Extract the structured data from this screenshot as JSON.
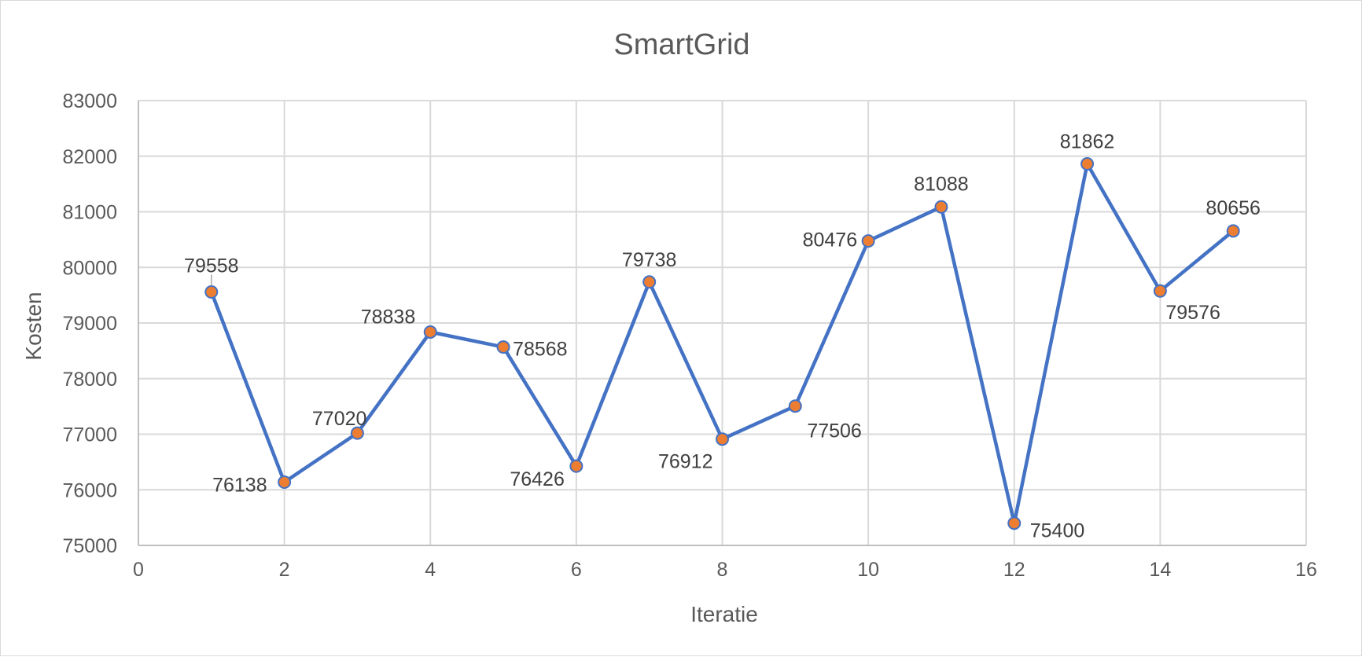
{
  "chart_data": {
    "type": "line",
    "title": "SmartGrid",
    "xlabel": "Iteratie",
    "ylabel": "Kosten",
    "xlim": [
      0,
      16
    ],
    "ylim": [
      75000,
      83000
    ],
    "x_ticks": [
      0,
      2,
      4,
      6,
      8,
      10,
      12,
      14,
      16
    ],
    "y_ticks": [
      75000,
      76000,
      77000,
      78000,
      79000,
      80000,
      81000,
      82000,
      83000
    ],
    "grid": true,
    "legend": "none",
    "colors": {
      "line": "#4472c4",
      "marker": "#ed7d31",
      "marker_edge": "#4472c4"
    },
    "series": [
      {
        "x": [
          1,
          2,
          3,
          4,
          5,
          6,
          7,
          8,
          9,
          10,
          11,
          12,
          13,
          14,
          15
        ],
        "values": [
          79558,
          76138,
          77020,
          78838,
          78568,
          76426,
          79738,
          76912,
          77506,
          80476,
          81088,
          75400,
          81862,
          79576,
          80656
        ],
        "labels": [
          "79558",
          "76138",
          "77020",
          "78838",
          "78568",
          "76426",
          "79738",
          "76912",
          "77506",
          "80476",
          "81088",
          "75400",
          "81862",
          "79576",
          "80656"
        ]
      }
    ]
  }
}
